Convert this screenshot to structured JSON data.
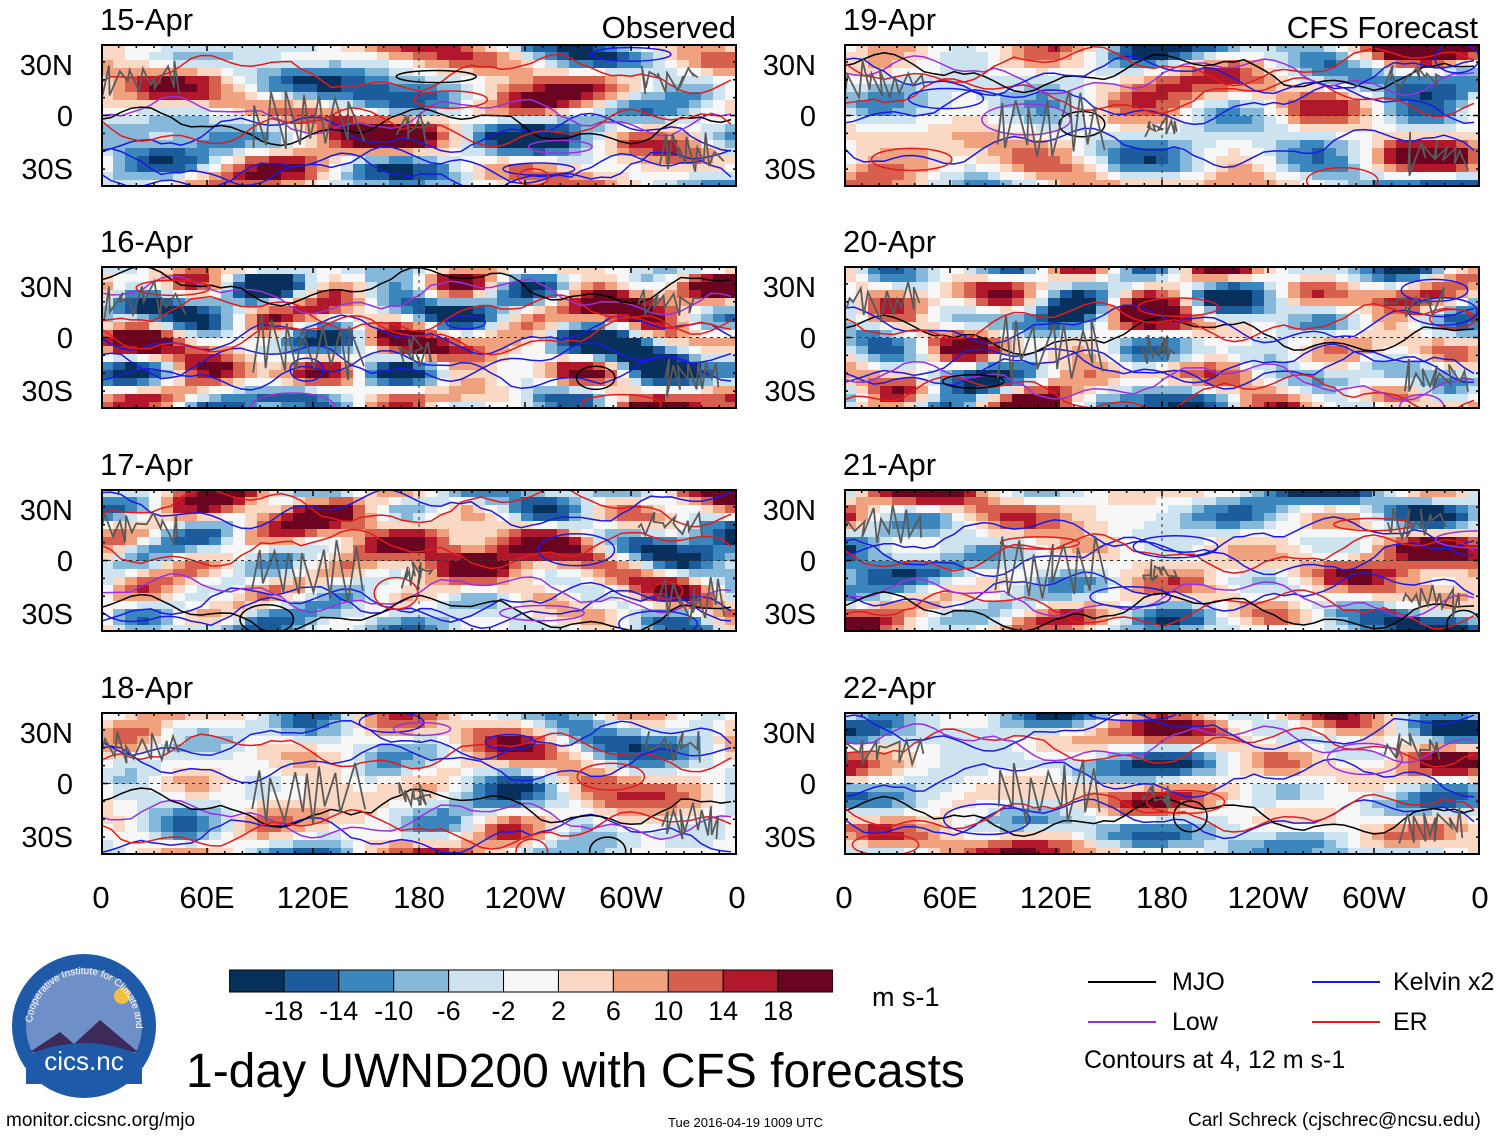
{
  "panel_titles": {
    "left": "Observed",
    "right": "CFS Forecast"
  },
  "colors": {
    "palette": [
      "#08305c",
      "#1c5c9c",
      "#3a86bd",
      "#86b9d9",
      "#cde3ef",
      "#f7f7f7",
      "#fbd8c4",
      "#f0a27e",
      "#d6604d",
      "#b1182b",
      "#6a0420"
    ],
    "mjo": "#000000",
    "low": "#9b30e0",
    "kelvin": "#1a1ae6",
    "er": "#e61a1a",
    "coast": "#5a5a5a"
  },
  "chart_data": {
    "type": "heatmap",
    "title": "1-day UWND200 with CFS forecasts",
    "variable": "200-hPa zonal wind anomaly",
    "units": "m s-1",
    "y_ticks": [
      "30N",
      "0",
      "30S"
    ],
    "x_ticks": [
      "0",
      "60E",
      "120E",
      "180",
      "120W",
      "60W",
      "0"
    ],
    "panels": [
      {
        "date": "15-Apr",
        "column": "Observed"
      },
      {
        "date": "16-Apr",
        "column": "Observed"
      },
      {
        "date": "17-Apr",
        "column": "Observed"
      },
      {
        "date": "18-Apr",
        "column": "Observed"
      },
      {
        "date": "19-Apr",
        "column": "CFS Forecast"
      },
      {
        "date": "20-Apr",
        "column": "CFS Forecast"
      },
      {
        "date": "21-Apr",
        "column": "CFS Forecast"
      },
      {
        "date": "22-Apr",
        "column": "CFS Forecast"
      }
    ],
    "colorbar": {
      "levels": [
        "-18",
        "-14",
        "-10",
        "-6",
        "-2",
        "2",
        "6",
        "10",
        "14",
        "18"
      ],
      "units": "m s-1"
    },
    "legend": [
      {
        "name": "MJO",
        "color": "#000000"
      },
      {
        "name": "Kelvin x2",
        "color": "#1a1ae6"
      },
      {
        "name": "Low",
        "color": "#9b30e0"
      },
      {
        "name": "ER",
        "color": "#e61a1a"
      }
    ],
    "contour_note": "Contours at 4, 12 m s-1"
  },
  "logo": {
    "text": "cics.nc",
    "ring_text": "Cooperative Institute for Climate and Satellites"
  },
  "footer": {
    "url": "monitor.cicsnc.org/mjo",
    "timestamp": "Tue 2016-04-19 1009 UTC",
    "author": "Carl Schreck (cjschrec@ncsu.edu)"
  }
}
